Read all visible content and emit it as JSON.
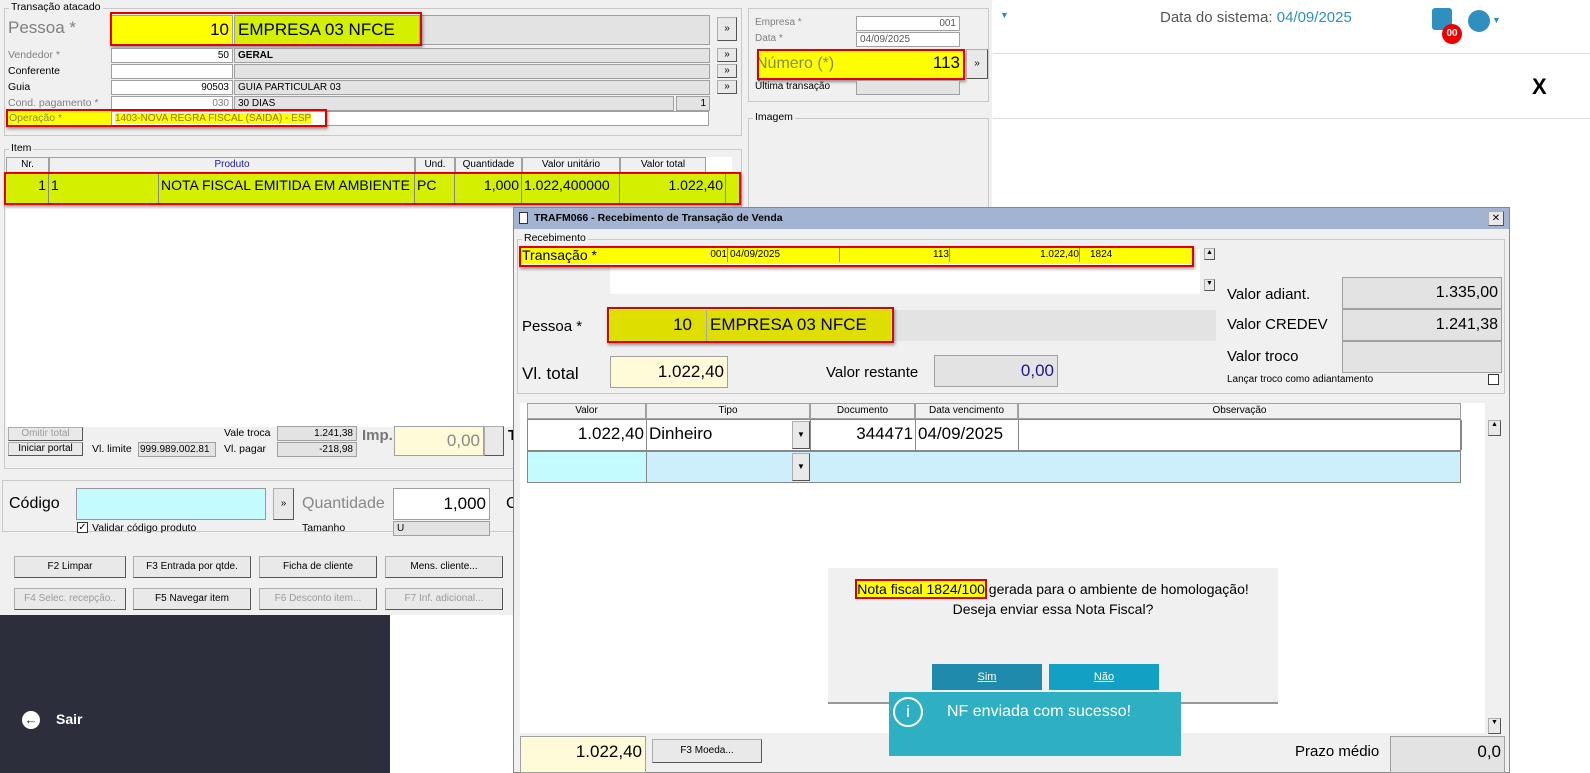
{
  "transacao": {
    "group": "Transação atacado",
    "pessoa_label": "Pessoa *",
    "pessoa_code": "10",
    "pessoa_name": "EMPRESA 03 NFCE",
    "vendedor_label": "Vendedor *",
    "vendedor_code": "50",
    "vendedor_name": "GERAL",
    "conferente_label": "Conferente",
    "guia_label": "Guia",
    "guia_code": "90503",
    "guia_name": "GUIA PARTICULAR 03",
    "cond_label": "Cond. pagamento *",
    "cond_code": "030",
    "cond_name": "30 DIAS",
    "cond_extra": "1",
    "operacao_label": "Operação *",
    "operacao_value": "1403-NOVA REGRA FISCAL (SAIDA) - ESP",
    "more": "»"
  },
  "header": {
    "empresa_label": "Empresa *",
    "empresa": "001",
    "data_label": "Data *",
    "data": "04/09/2025",
    "numero_label": "Número (*)",
    "numero": "113",
    "ultima_label": "Última transação",
    "imagem_label": "Imagem"
  },
  "item": {
    "group": "Item",
    "columns": [
      "Nr.",
      "Produto",
      "Und.",
      "Quantidade",
      "Valor unitário",
      "Valor total"
    ],
    "rows": [
      {
        "nr": "1",
        "codigo": "1",
        "produto": "NOTA FISCAL EMITIDA EM AMBIENTE",
        "und": "PC",
        "qtd": "1,000",
        "unit": "1.022,400000",
        "total": "1.022,40"
      }
    ]
  },
  "totals": {
    "omitir": "Omitir total",
    "iniciar": "Iniciar portal",
    "vl_limite_label": "Vl. limite",
    "vl_limite": "999.989.002.81",
    "vale_troca_label": "Vale troca",
    "vale_troca": "1.241,38",
    "vl_pagar_label": "Vl. pagar",
    "vl_pagar": "-218,98",
    "imp_label": "Imp.",
    "imp": "0,00",
    "t": "T"
  },
  "codigo": {
    "label": "Código",
    "value": "",
    "validar": "Validar código produto",
    "quantidade_label": "Quantidade",
    "quantidade": "1,000",
    "tamanho_label": "Tamanho",
    "tamanho": "U",
    "c": "C"
  },
  "buttons": {
    "row1": [
      "F2 Limpar",
      "F3 Entrada por qtde.",
      "Ficha de cliente",
      "Mens. cliente..."
    ],
    "row2": [
      "F4 Selec. recepção..",
      "F5 Navegar item",
      "F6 Desconto item...",
      "F7 Inf. adicional..."
    ]
  },
  "sidebar": {
    "sair": "Sair"
  },
  "web": {
    "date_label": "Data do sistema:",
    "date": "04/09/2025",
    "badge": "00",
    "close": "X"
  },
  "dialog": {
    "title": "TRAFM066 - Recebimento de Transação de Venda",
    "group": "Recebimento",
    "transacao_label": "Transação *",
    "t_empresa": "001",
    "t_data": "04/09/2025",
    "t_numero": "113",
    "t_valor": "1.022,40",
    "t_nf": "1824",
    "pessoa_label": "Pessoa *",
    "pessoa_code": "10",
    "pessoa_name": "EMPRESA 03 NFCE",
    "vl_total_label": "Vl. total",
    "vl_total": "1.022,40",
    "restante_label": "Valor restante",
    "restante": "0,00",
    "adiant_label": "Valor adiant.",
    "adiant": "1.335,00",
    "credev_label": "Valor CREDEV",
    "credev": "1.241,38",
    "troco_label": "Valor troco",
    "troco": "",
    "lancar": "Lançar troco como adiantamento",
    "columns": [
      "Valor",
      "Tipo",
      "Documento",
      "Data vencimento",
      "Observação"
    ],
    "rows": [
      {
        "valor": "1.022,40",
        "tipo": "Dinheiro",
        "documento": "344471",
        "vencimento": "04/09/2025",
        "obs": ""
      }
    ],
    "footer_total": "1.022,40",
    "f3": "F3 Moeda...",
    "prazo_label": "Prazo médio",
    "prazo": "0,0"
  },
  "prompt": {
    "highlight": "Nota fiscal 1824/100",
    "line1_rest": " gerada para o ambiente de homologação!",
    "line2": "Deseja enviar essa Nota Fiscal?",
    "sim": "Sim",
    "nao": "Não"
  },
  "toast": {
    "message": "NF enviada com sucesso!"
  }
}
